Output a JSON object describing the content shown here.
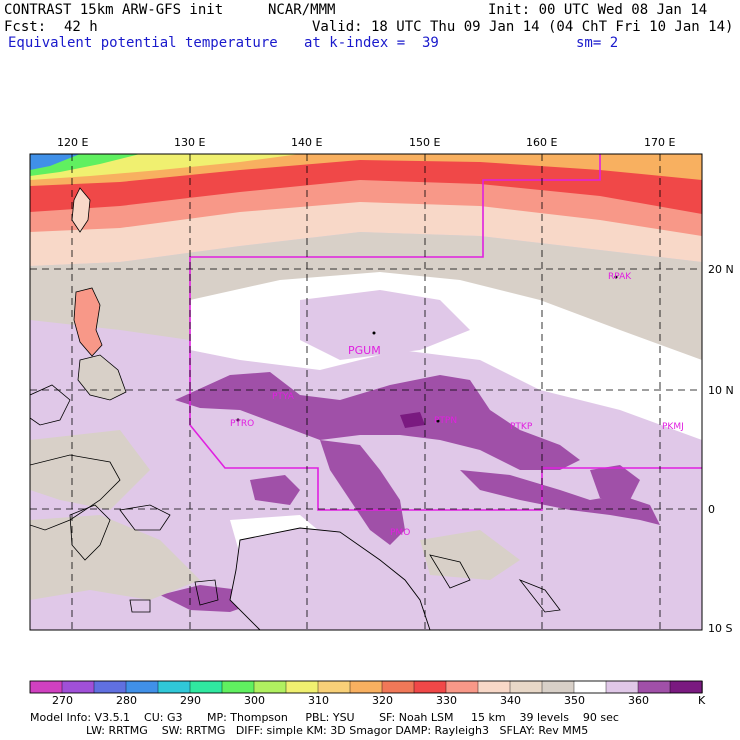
{
  "header": {
    "model": "CONTRAST 15km ARW-GFS init",
    "org": "NCAR/MMM",
    "init": "Init: 00 UTC Wed 08 Jan 14",
    "fcst_label": "Fcst:",
    "fcst_value": "42 h",
    "valid": "Valid: 18 UTC Thu 09 Jan 14 (04 ChT Fri 10 Jan 14)",
    "field": "Equivalent potential temperature",
    "kindex": "at k-index =  39",
    "smooth": "sm= 2"
  },
  "map": {
    "lon_labels": [
      "120 E",
      "130 E",
      "140 E",
      "150 E",
      "160 E",
      "170 E"
    ],
    "lat_labels": [
      "20 N",
      "10 N",
      "0",
      "10 S"
    ],
    "stations": [
      "RPAK",
      "PGUM",
      "PTYA",
      "PTRO",
      "PTPN",
      "PTKP",
      "PKMJ",
      "PMO"
    ]
  },
  "colorbar": {
    "tick_labels": [
      "270",
      "280",
      "290",
      "300",
      "310",
      "320",
      "330",
      "340",
      "350",
      "360"
    ],
    "unit": "K",
    "colors": [
      "#d040c0",
      "#a050d8",
      "#6070e0",
      "#4090e8",
      "#30c8d8",
      "#30e8a0",
      "#60f060",
      "#b0f060",
      "#f0f070",
      "#f8d078",
      "#f8b060",
      "#f07858",
      "#f04848",
      "#f89888",
      "#f8d8c8",
      "#e8d8c8",
      "#d8d0c8",
      "#ffffff",
      "#e0c8e8",
      "#a050a8",
      "#7a1a80"
    ]
  },
  "model_info": {
    "line1": "Model Info: V3.5.1    CU: G3       MP: Thompson     PBL: YSU       SF: Noah LSM     15 km    39 levels    90 sec",
    "line2": "                LW: RRTMG    SW: RRTMG   DIFF: simple KM: 3D Smagor DAMP: Rayleigh3   SFLAY: Rev MM5"
  }
}
